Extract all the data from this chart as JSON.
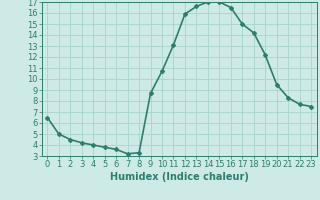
{
  "x": [
    0,
    1,
    2,
    3,
    4,
    5,
    6,
    7,
    8,
    9,
    10,
    11,
    12,
    13,
    14,
    15,
    16,
    17,
    18,
    19,
    20,
    21,
    22,
    23
  ],
  "y": [
    6.5,
    5.0,
    4.5,
    4.2,
    4.0,
    3.8,
    3.6,
    3.2,
    3.3,
    8.7,
    10.7,
    13.1,
    15.9,
    16.6,
    17.0,
    17.0,
    16.5,
    15.0,
    14.2,
    12.2,
    9.5,
    8.3,
    7.7,
    7.5
  ],
  "line_color": "#2e7d6e",
  "marker": "D",
  "marker_size": 2.0,
  "bg_color": "#ceeae6",
  "grid_color": "#aad4ce",
  "xlabel": "Humidex (Indice chaleur)",
  "xlim": [
    -0.5,
    23.5
  ],
  "ylim": [
    3,
    17
  ],
  "yticks": [
    3,
    4,
    5,
    6,
    7,
    8,
    9,
    10,
    11,
    12,
    13,
    14,
    15,
    16,
    17
  ],
  "xticks": [
    0,
    1,
    2,
    3,
    4,
    5,
    6,
    7,
    8,
    9,
    10,
    11,
    12,
    13,
    14,
    15,
    16,
    17,
    18,
    19,
    20,
    21,
    22,
    23
  ],
  "tick_color": "#2e7d6e",
  "label_color": "#2e7d6e",
  "font_size_label": 7,
  "font_size_tick": 6,
  "line_width": 1.2
}
